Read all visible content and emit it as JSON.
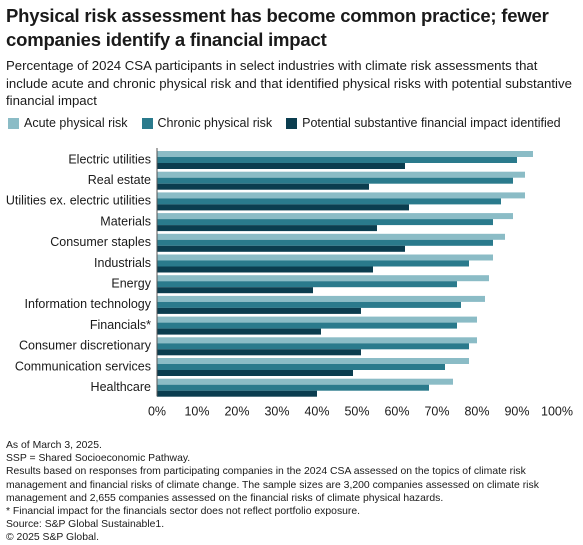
{
  "chart_data": {
    "type": "hbar",
    "title": "Physical risk assessment has become common practice; fewer companies identify a financial impact",
    "subtitle": "Percentage of 2024 CSA participants in select industries with climate risk assessments that include acute and chronic physical risk and that identified physical risks with potential substantive financial impact",
    "categories": [
      "Electric utilities",
      "Real estate",
      "Utilities ex. electric utilities",
      "Materials",
      "Consumer staples",
      "Industrials",
      "Energy",
      "Information technology",
      "Financials*",
      "Consumer discretionary",
      "Communication services",
      "Healthcare"
    ],
    "series": [
      {
        "name": "Acute physical risk",
        "color": "#8bbcc6",
        "values": [
          94,
          92,
          92,
          89,
          87,
          84,
          83,
          82,
          80,
          80,
          78,
          74
        ]
      },
      {
        "name": "Chronic physical risk",
        "color": "#2a7a8c",
        "values": [
          90,
          89,
          86,
          84,
          84,
          78,
          75,
          76,
          75,
          78,
          72,
          68
        ]
      },
      {
        "name": "Potential substantive financial impact identified",
        "color": "#0b3d4f",
        "values": [
          62,
          53,
          63,
          55,
          62,
          54,
          39,
          51,
          41,
          51,
          49,
          40
        ]
      }
    ],
    "xlim": [
      0,
      100
    ],
    "xticks": [
      {
        "value": 0,
        "label": "0%"
      },
      {
        "value": 10,
        "label": "10%"
      },
      {
        "value": 20,
        "label": "20%"
      },
      {
        "value": 30,
        "label": "30%"
      },
      {
        "value": 40,
        "label": "40%"
      },
      {
        "value": 50,
        "label": "50%"
      },
      {
        "value": 60,
        "label": "60%"
      },
      {
        "value": 70,
        "label": "70%"
      },
      {
        "value": 80,
        "label": "80%"
      },
      {
        "value": 90,
        "label": "90%"
      },
      {
        "value": 100,
        "label": "100%"
      }
    ],
    "grid": false,
    "notes": [
      "As of March 3, 2025.",
      "SSP = Shared Socioeconomic Pathway.",
      "Results based on responses from participating companies in the 2024 CSA assessed on the topics of climate risk management and financial risks of climate change. The sample sizes are 3,200 companies assessed on climate risk management and 2,655 companies assessed on the financial risks of climate physical hazards.",
      "* Financial impact for the financials sector does not reflect portfolio exposure.",
      "Source: S&P Global Sustainable1.",
      "© 2025 S&P Global."
    ]
  }
}
